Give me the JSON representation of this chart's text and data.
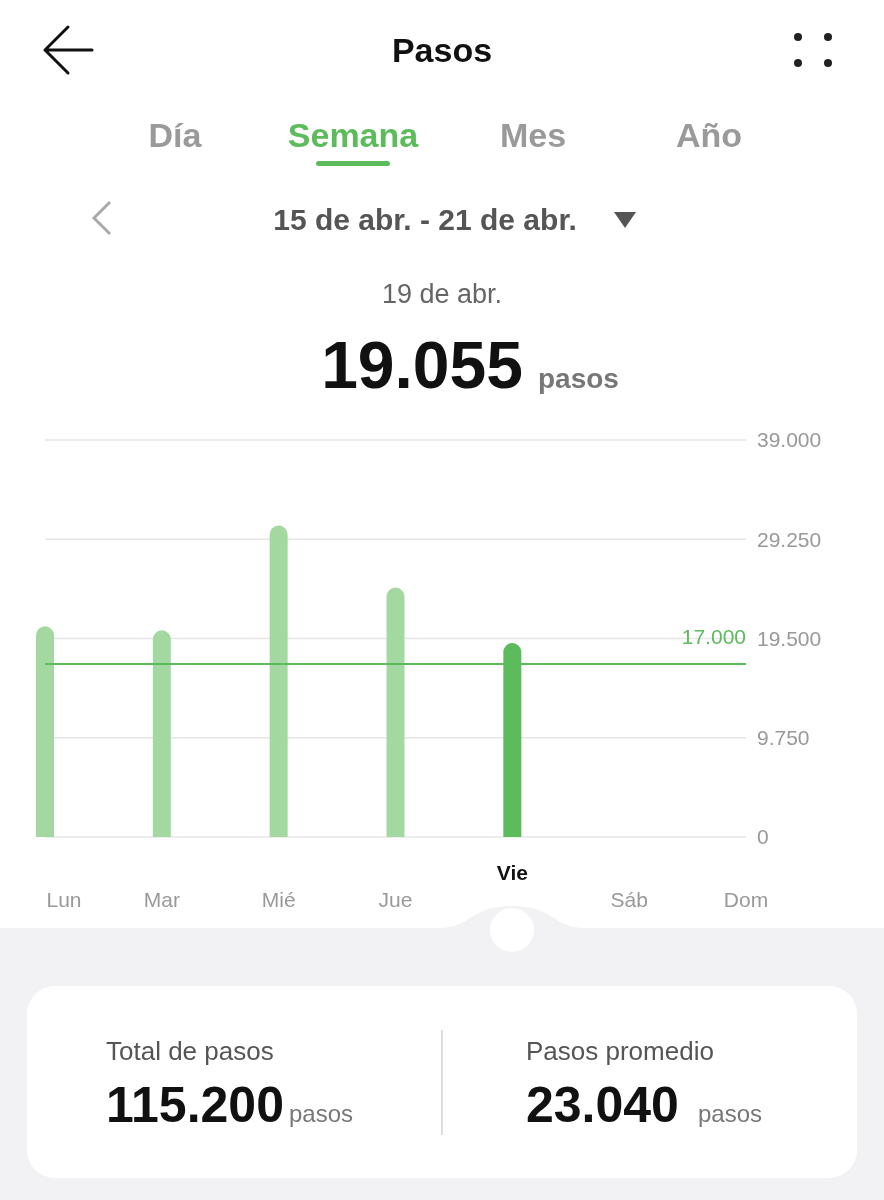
{
  "chart_data": {
    "type": "bar",
    "title": "Pasos",
    "categories": [
      "Lun",
      "Mar",
      "Mié",
      "Jue",
      "Vie",
      "Sáb",
      "Dom"
    ],
    "values": [
      20700,
      20300,
      30600,
      24500,
      19055,
      null,
      null
    ],
    "colors": [
      "#a3d9a0",
      "#a3d9a0",
      "#a3d9a0",
      "#a3d9a0",
      "#5cbb5a",
      null,
      null
    ],
    "ylim": [
      0,
      39000
    ],
    "yticks": [
      {
        "value": 0,
        "label": "0"
      },
      {
        "value": 9750,
        "label": "9.750"
      },
      {
        "value": 19500,
        "label": "19.500"
      },
      {
        "value": 29250,
        "label": "29.250"
      },
      {
        "value": 39000,
        "label": "39.000"
      }
    ],
    "grid": "y",
    "ref_lines": [
      {
        "axis": "y",
        "value": 17000,
        "label": "17.000",
        "color": "#5cbb5a"
      }
    ],
    "annotations": [
      "Día",
      "Semana",
      "Mes",
      "Año",
      "15 de abr. - 21 de abr.",
      "19 de abr.",
      "19.055",
      "pasos",
      "Total de pasos",
      "115.200",
      "pasos",
      "Pasos promedio",
      "23.040",
      "pasos"
    ]
  }
}
